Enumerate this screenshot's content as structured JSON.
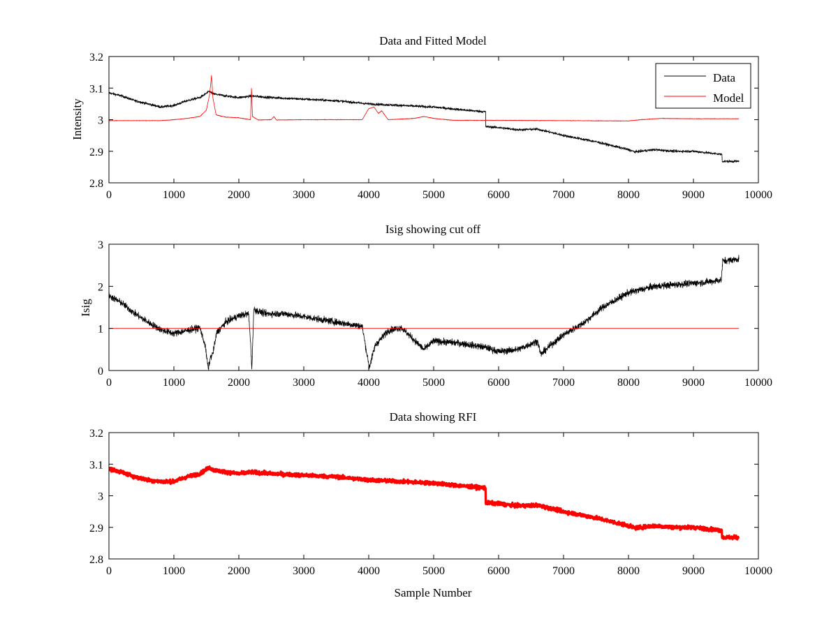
{
  "chart_data": [
    {
      "type": "line",
      "title": "Data and Fitted Model",
      "xlabel": "",
      "ylabel": "Intensity",
      "xlim": [
        0,
        10000
      ],
      "ylim": [
        2.8,
        3.2
      ],
      "xticks": [
        "0",
        "1000",
        "2000",
        "3000",
        "4000",
        "5000",
        "6000",
        "7000",
        "8000",
        "9000",
        "10000"
      ],
      "yticks": [
        "2.8",
        "2.9",
        "3",
        "3.1",
        "3.2"
      ],
      "grid": false,
      "legend": "top-right",
      "series": [
        {
          "name": "Data",
          "color": "#000000",
          "noise": 0.004,
          "points": [
            [
              0,
              3.085
            ],
            [
              200,
              3.075
            ],
            [
              400,
              3.06
            ],
            [
              600,
              3.05
            ],
            [
              800,
              3.04
            ],
            [
              1000,
              3.045
            ],
            [
              1200,
              3.06
            ],
            [
              1400,
              3.07
            ],
            [
              1550,
              3.09
            ],
            [
              1600,
              3.082
            ],
            [
              1800,
              3.075
            ],
            [
              2000,
              3.07
            ],
            [
              2200,
              3.075
            ],
            [
              2500,
              3.07
            ],
            [
              3000,
              3.065
            ],
            [
              3500,
              3.06
            ],
            [
              4000,
              3.05
            ],
            [
              4500,
              3.045
            ],
            [
              5000,
              3.04
            ],
            [
              5500,
              3.03
            ],
            [
              5800,
              3.025
            ],
            [
              5801,
              2.978
            ],
            [
              6000,
              2.975
            ],
            [
              6300,
              2.968
            ],
            [
              6600,
              2.97
            ],
            [
              6700,
              2.965
            ],
            [
              7000,
              2.95
            ],
            [
              7500,
              2.93
            ],
            [
              8000,
              2.905
            ],
            [
              8100,
              2.898
            ],
            [
              8400,
              2.905
            ],
            [
              8700,
              2.9
            ],
            [
              9000,
              2.9
            ],
            [
              9440,
              2.89
            ],
            [
              9441,
              2.868
            ],
            [
              9700,
              2.868
            ]
          ]
        },
        {
          "name": "Model",
          "color": "#ff0000",
          "noise": 0.0008,
          "points": [
            [
              0,
              2.997
            ],
            [
              800,
              2.997
            ],
            [
              1000,
              3.0
            ],
            [
              1200,
              3.004
            ],
            [
              1400,
              3.01
            ],
            [
              1500,
              3.03
            ],
            [
              1550,
              3.08
            ],
            [
              1580,
              3.14
            ],
            [
              1600,
              3.07
            ],
            [
              1650,
              3.015
            ],
            [
              1800,
              3.008
            ],
            [
              2000,
              3.006
            ],
            [
              2180,
              3.0
            ],
            [
              2195,
              3.1
            ],
            [
              2210,
              3.01
            ],
            [
              2300,
              2.999
            ],
            [
              2500,
              3.0
            ],
            [
              2540,
              3.01
            ],
            [
              2580,
              2.999
            ],
            [
              3000,
              3.0
            ],
            [
              3900,
              3.0
            ],
            [
              4000,
              3.035
            ],
            [
              4080,
              3.04
            ],
            [
              4150,
              3.02
            ],
            [
              4200,
              3.028
            ],
            [
              4300,
              3.0
            ],
            [
              4700,
              3.004
            ],
            [
              4850,
              3.01
            ],
            [
              5000,
              3.004
            ],
            [
              5300,
              2.998
            ],
            [
              6000,
              2.998
            ],
            [
              7000,
              2.997
            ],
            [
              8000,
              2.996
            ],
            [
              8200,
              3.0
            ],
            [
              8500,
              3.004
            ],
            [
              9000,
              3.003
            ],
            [
              9700,
              3.003
            ]
          ]
        }
      ]
    },
    {
      "type": "line",
      "title": "Isig showing cut off",
      "xlabel": "",
      "ylabel": "Isig",
      "xlim": [
        0,
        10000
      ],
      "ylim": [
        0,
        3
      ],
      "xticks": [
        "0",
        "1000",
        "2000",
        "3000",
        "4000",
        "5000",
        "6000",
        "7000",
        "8000",
        "9000",
        "10000"
      ],
      "yticks": [
        "0",
        "1",
        "2",
        "3"
      ],
      "grid": false,
      "series": [
        {
          "color": "#000000",
          "noise": 0.08,
          "points": [
            [
              0,
              1.78
            ],
            [
              200,
              1.6
            ],
            [
              400,
              1.35
            ],
            [
              600,
              1.15
            ],
            [
              800,
              0.97
            ],
            [
              1000,
              0.88
            ],
            [
              1200,
              0.95
            ],
            [
              1400,
              1.02
            ],
            [
              1480,
              0.6
            ],
            [
              1530,
              0.03
            ],
            [
              1560,
              0.3
            ],
            [
              1600,
              0.4
            ],
            [
              1660,
              0.9
            ],
            [
              1800,
              1.15
            ],
            [
              2000,
              1.3
            ],
            [
              2150,
              1.35
            ],
            [
              2180,
              0.7
            ],
            [
              2200,
              0.03
            ],
            [
              2230,
              1.45
            ],
            [
              2400,
              1.35
            ],
            [
              2700,
              1.35
            ],
            [
              3000,
              1.28
            ],
            [
              3500,
              1.15
            ],
            [
              3900,
              1.05
            ],
            [
              3960,
              0.5
            ],
            [
              4010,
              0.08
            ],
            [
              4100,
              0.6
            ],
            [
              4300,
              0.95
            ],
            [
              4500,
              1.02
            ],
            [
              4650,
              0.8
            ],
            [
              4850,
              0.5
            ],
            [
              5000,
              0.7
            ],
            [
              5400,
              0.65
            ],
            [
              5800,
              0.55
            ],
            [
              6000,
              0.45
            ],
            [
              6300,
              0.5
            ],
            [
              6600,
              0.7
            ],
            [
              6650,
              0.38
            ],
            [
              6800,
              0.6
            ],
            [
              7000,
              0.85
            ],
            [
              7300,
              1.12
            ],
            [
              7600,
              1.5
            ],
            [
              8000,
              1.85
            ],
            [
              8400,
              2.0
            ],
            [
              8800,
              2.05
            ],
            [
              9200,
              2.1
            ],
            [
              9430,
              2.15
            ],
            [
              9450,
              2.6
            ],
            [
              9700,
              2.65
            ]
          ]
        },
        {
          "color": "#ff0000",
          "noise": 0,
          "points": [
            [
              0,
              1
            ],
            [
              9700,
              1
            ]
          ]
        }
      ]
    },
    {
      "type": "line",
      "title": "Data showing RFI",
      "xlabel": "Sample Number",
      "ylabel": "",
      "xlim": [
        0,
        10000
      ],
      "ylim": [
        2.8,
        3.2
      ],
      "xticks": [
        "0",
        "1000",
        "2000",
        "3000",
        "4000",
        "5000",
        "6000",
        "7000",
        "8000",
        "9000",
        "10000"
      ],
      "yticks": [
        "2.8",
        "2.9",
        "3",
        "3.1",
        "3.2"
      ],
      "grid": false,
      "series": [
        {
          "color": "#ff0000",
          "noise": 0.006,
          "thick": true,
          "points": [
            [
              0,
              3.085
            ],
            [
              200,
              3.075
            ],
            [
              400,
              3.06
            ],
            [
              600,
              3.05
            ],
            [
              800,
              3.045
            ],
            [
              1000,
              3.045
            ],
            [
              1200,
              3.06
            ],
            [
              1400,
              3.07
            ],
            [
              1550,
              3.09
            ],
            [
              1600,
              3.082
            ],
            [
              1800,
              3.075
            ],
            [
              2000,
              3.07
            ],
            [
              2200,
              3.075
            ],
            [
              2500,
              3.07
            ],
            [
              3000,
              3.065
            ],
            [
              3500,
              3.06
            ],
            [
              4000,
              3.05
            ],
            [
              4500,
              3.045
            ],
            [
              5000,
              3.04
            ],
            [
              5500,
              3.03
            ],
            [
              5800,
              3.025
            ],
            [
              5801,
              2.978
            ],
            [
              6000,
              2.975
            ],
            [
              6300,
              2.968
            ],
            [
              6600,
              2.97
            ],
            [
              6700,
              2.965
            ],
            [
              7000,
              2.95
            ],
            [
              7500,
              2.93
            ],
            [
              8000,
              2.905
            ],
            [
              8100,
              2.898
            ],
            [
              8400,
              2.905
            ],
            [
              8700,
              2.9
            ],
            [
              9000,
              2.9
            ],
            [
              9440,
              2.89
            ],
            [
              9441,
              2.868
            ],
            [
              9700,
              2.868
            ]
          ]
        }
      ]
    }
  ],
  "legend": {
    "data_label": "Data",
    "model_label": "Model"
  }
}
